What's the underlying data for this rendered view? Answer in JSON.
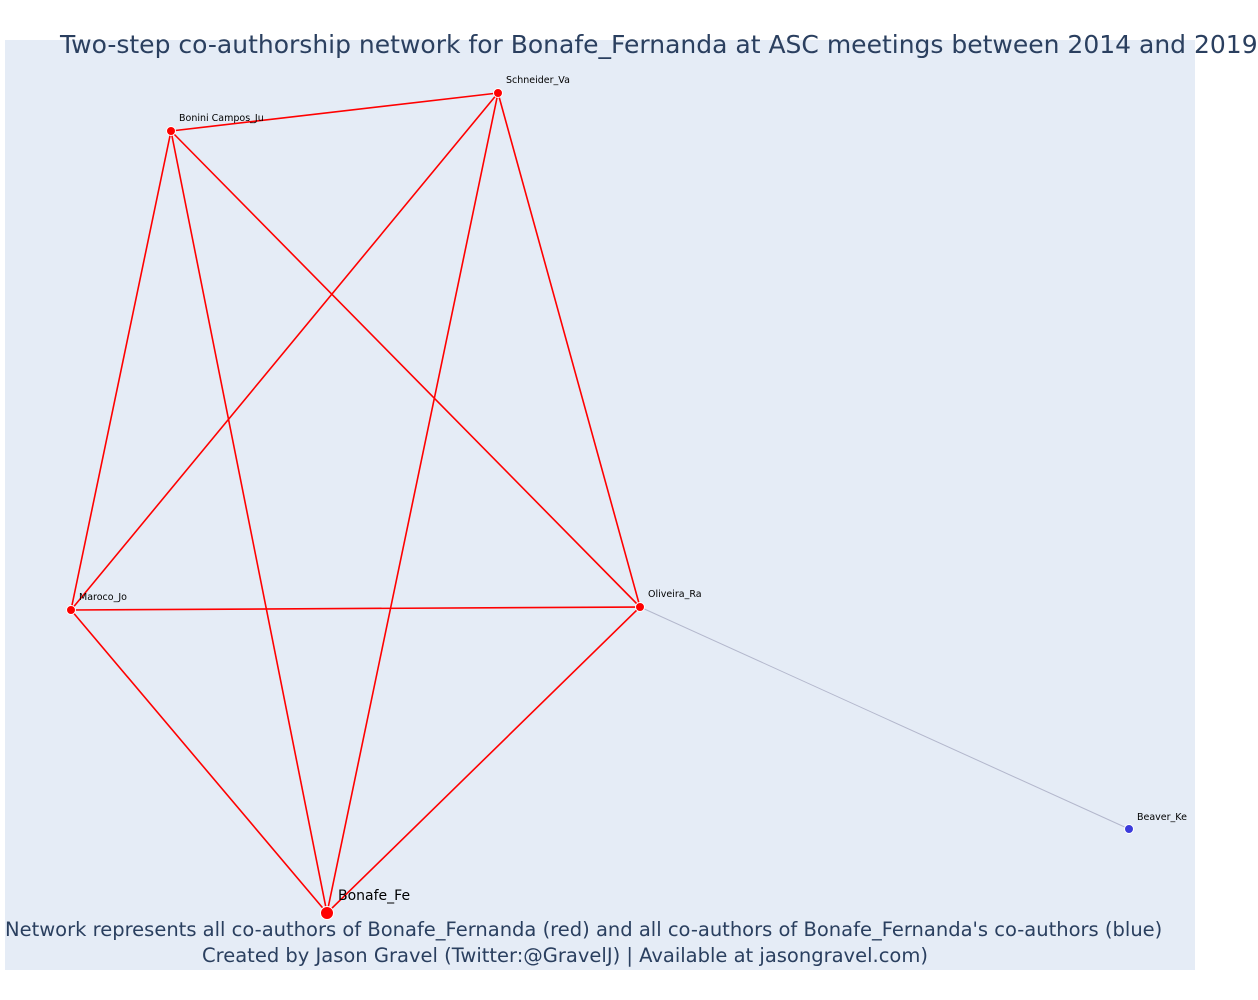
{
  "title": "Two-step co-authorship network for Bonafe_Fernanda at ASC meetings between 2014 and 2019",
  "caption": {
    "line1": "Network represents all co-authors of Bonafe_Fernanda (red) and all co-authors of Bonafe_Fernanda's co-authors (blue)",
    "line2": "Created by Jason Gravel (Twitter:@GravelJ) | Available at jasongravel.com)"
  },
  "colors": {
    "background": "#e5ecf6",
    "red": "#ff0000",
    "blue": "#3b3bdb",
    "gray_edge": "#b3b7cc",
    "title": "#2a3f5f"
  },
  "nodes": [
    {
      "id": "bonafe",
      "label": "Bonafe_Fe",
      "group": "focal"
    },
    {
      "id": "schneider",
      "label": "Schneider_Va",
      "group": "red"
    },
    {
      "id": "bonini",
      "label": "Bonini Campos_Ju",
      "group": "red"
    },
    {
      "id": "maroco",
      "label": "Maroco_Jo",
      "group": "red"
    },
    {
      "id": "oliveira",
      "label": "Oliveira_Ra",
      "group": "red"
    },
    {
      "id": "beaver",
      "label": "Beaver_Ke",
      "group": "blue"
    }
  ],
  "edges": [
    {
      "source": "bonini",
      "target": "schneider",
      "color": "red"
    },
    {
      "source": "bonini",
      "target": "maroco",
      "color": "red"
    },
    {
      "source": "bonini",
      "target": "bonafe",
      "color": "red"
    },
    {
      "source": "bonini",
      "target": "oliveira",
      "color": "red"
    },
    {
      "source": "schneider",
      "target": "maroco",
      "color": "red"
    },
    {
      "source": "schneider",
      "target": "bonafe",
      "color": "red"
    },
    {
      "source": "schneider",
      "target": "oliveira",
      "color": "red"
    },
    {
      "source": "maroco",
      "target": "oliveira",
      "color": "red"
    },
    {
      "source": "maroco",
      "target": "bonafe",
      "color": "red"
    },
    {
      "source": "oliveira",
      "target": "bonafe",
      "color": "red"
    },
    {
      "source": "oliveira",
      "target": "beaver",
      "color": "gray"
    }
  ]
}
